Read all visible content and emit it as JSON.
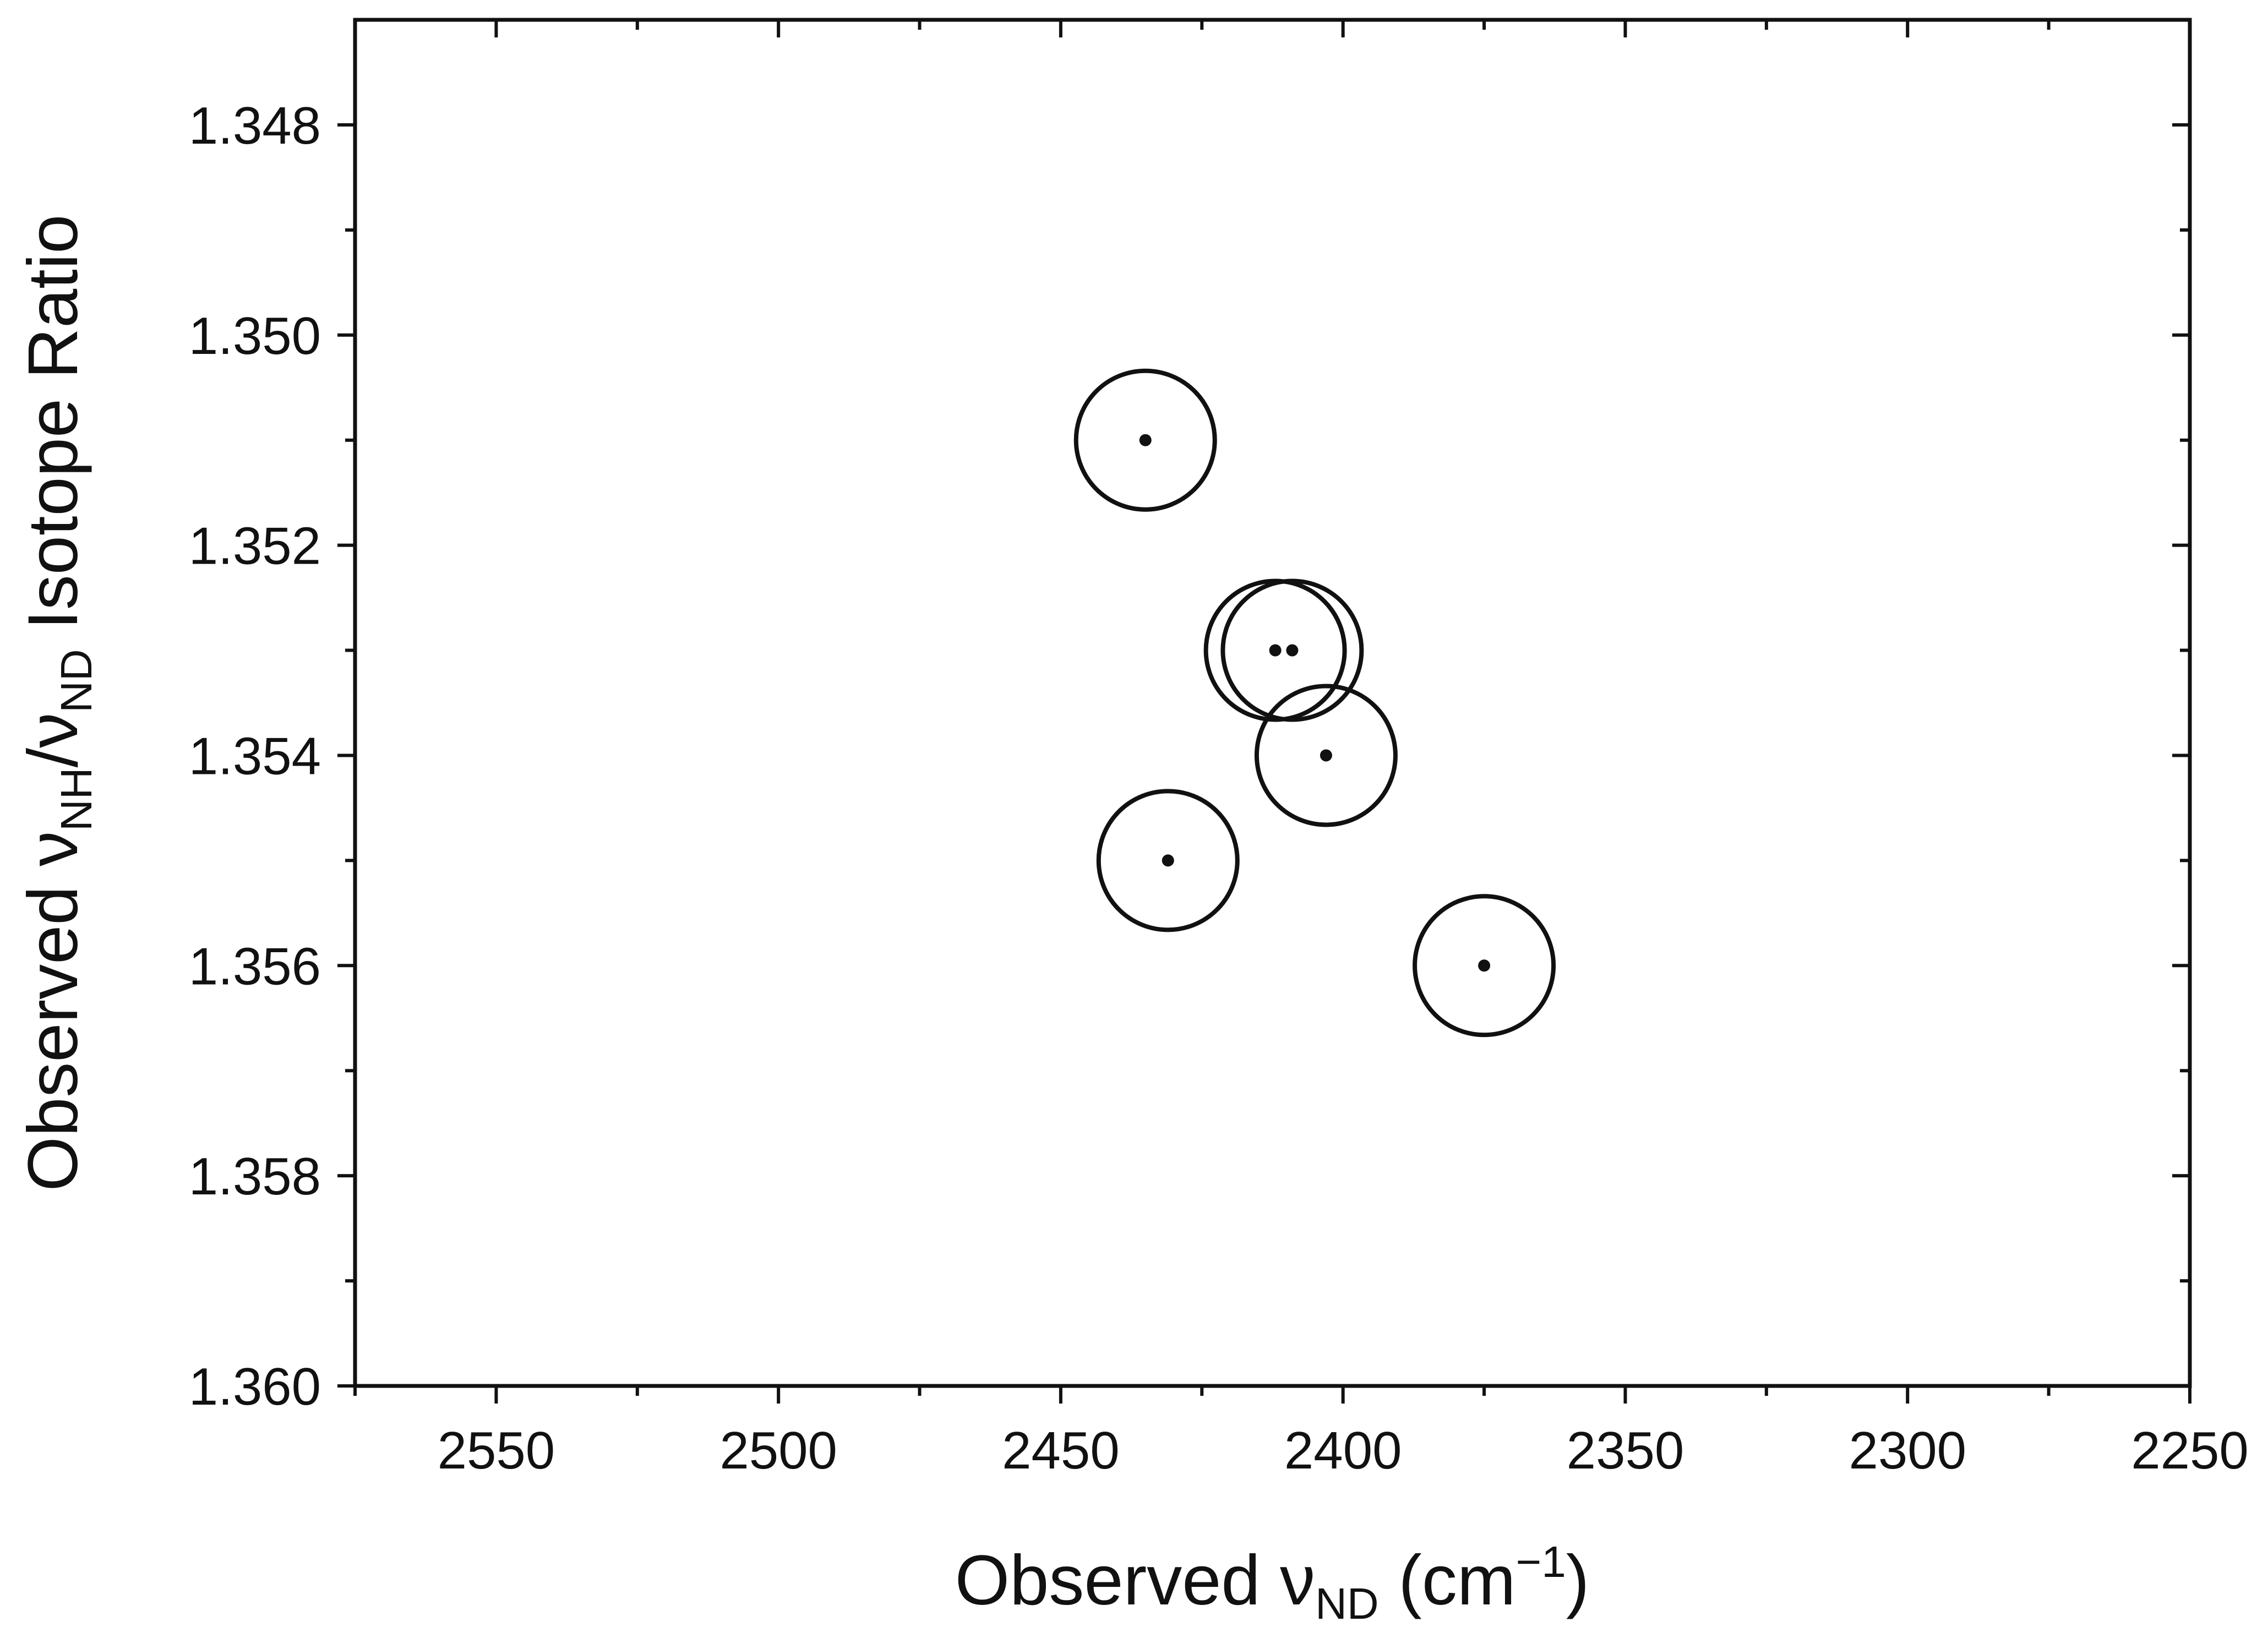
{
  "chart_data": {
    "type": "scatter",
    "xlabel_parts": {
      "main": "Observed ν",
      "sub": "ND",
      "unit_open": " (cm",
      "unit_sup": "−1",
      "unit_close": ")"
    },
    "ylabel_parts": {
      "p1": "Observed ν",
      "sub1": "NH",
      "p2": "/ν",
      "sub2": "ND",
      "p3": " Isotope Ratio"
    },
    "xlim": [
      2575,
      2250
    ],
    "ylim": [
      1.347,
      1.36
    ],
    "y_inverted": true,
    "x_reversed": true,
    "x_ticks": [
      2550,
      2500,
      2450,
      2400,
      2350,
      2300,
      2250
    ],
    "x_tick_labels": [
      "2550",
      "2500",
      "2450",
      "2400",
      "2350",
      "2300",
      "2250"
    ],
    "y_ticks": [
      1.348,
      1.35,
      1.352,
      1.354,
      1.356,
      1.358,
      1.36
    ],
    "y_tick_labels": [
      "1.348",
      "1.350",
      "1.352",
      "1.354",
      "1.356",
      "1.358",
      "1.360"
    ],
    "grid": false,
    "marker": "open-circle-with-center-dot",
    "points": [
      {
        "x": 2435,
        "y": 1.351
      },
      {
        "x": 2412,
        "y": 1.353
      },
      {
        "x": 2409,
        "y": 1.353
      },
      {
        "x": 2403,
        "y": 1.354
      },
      {
        "x": 2431,
        "y": 1.355
      },
      {
        "x": 2375,
        "y": 1.356
      }
    ]
  }
}
